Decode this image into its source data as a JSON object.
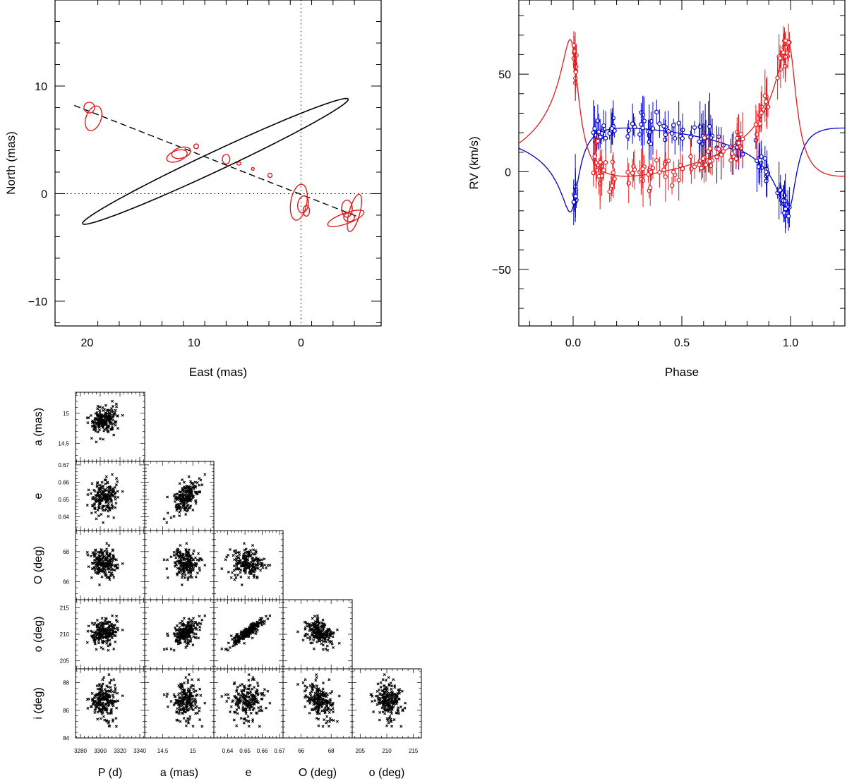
{
  "chart_data": [
    {
      "id": "orbit",
      "type": "scatter",
      "title": "",
      "xlabel": "East (mas)",
      "ylabel": "North (mas)",
      "xlim": [
        23,
        -7.5
      ],
      "ylim": [
        -12.3,
        18
      ],
      "xticks": [
        20,
        10,
        0
      ],
      "yticks": [
        10,
        0,
        -10
      ],
      "orbit_ellipse": {
        "center": [
          8.0,
          3.0
        ],
        "semi_major": 13.7,
        "semi_minor": 0.9,
        "pa_major_deg": 155,
        "color": "#000000"
      },
      "projected_line": {
        "from": [
          21.2,
          8.2
        ],
        "to": [
          -5.2,
          -2.1
        ],
        "style": "dashed",
        "color": "#000000"
      },
      "measurements": [
        {
          "x": 19.8,
          "y": 8.0,
          "rx": 0.5,
          "ry": 0.5,
          "rot": 0
        },
        {
          "x": 19.4,
          "y": 7.0,
          "rx": 0.7,
          "ry": 1.2,
          "rot": 20
        },
        {
          "x": 11.6,
          "y": 3.5,
          "rx": 1.0,
          "ry": 0.5,
          "rot": -20
        },
        {
          "x": 11.2,
          "y": 3.8,
          "rx": 0.9,
          "ry": 0.5,
          "rot": -15
        },
        {
          "x": 9.8,
          "y": 4.4,
          "rx": 0.22,
          "ry": 0.22,
          "rot": 0
        },
        {
          "x": 7.0,
          "y": 3.2,
          "rx": 0.35,
          "ry": 0.45,
          "rot": 0
        },
        {
          "x": 5.8,
          "y": 2.8,
          "rx": 0.2,
          "ry": 0.15,
          "rot": 0
        },
        {
          "x": 4.5,
          "y": 2.3,
          "rx": 0.12,
          "ry": 0.12,
          "rot": 0
        },
        {
          "x": 2.9,
          "y": 1.7,
          "rx": 0.2,
          "ry": 0.2,
          "rot": 0
        },
        {
          "x": 0.2,
          "y": -0.8,
          "rx": 0.75,
          "ry": 1.7,
          "rot": 10
        },
        {
          "x": -0.2,
          "y": -1.0,
          "rx": 0.5,
          "ry": 0.8,
          "rot": 10
        },
        {
          "x": -0.5,
          "y": -1.6,
          "rx": 0.3,
          "ry": 0.5,
          "rot": 0
        },
        {
          "x": -4.3,
          "y": -1.4,
          "rx": 0.5,
          "ry": 0.8,
          "rot": 0
        },
        {
          "x": -4.2,
          "y": -2.3,
          "rx": 1.8,
          "ry": 0.5,
          "rot": -20
        },
        {
          "x": -5.0,
          "y": -1.8,
          "rx": 0.5,
          "ry": 1.8,
          "rot": 15
        },
        {
          "x": -4.5,
          "y": -2.2,
          "rx": 0.5,
          "ry": 0.4,
          "rot": 0
        }
      ],
      "measurement_color": "#e41a1c"
    },
    {
      "id": "rv",
      "type": "line",
      "title": "",
      "xlabel": "Phase",
      "ylabel": "RV (km/s)",
      "xlim": [
        -0.25,
        1.25
      ],
      "ylim": [
        -79,
        88
      ],
      "xticks": [
        0.0,
        0.5,
        1.0
      ],
      "xticklabels": [
        "0.0",
        "0.5",
        "1.0"
      ],
      "yticks": [
        50,
        0,
        -50
      ],
      "orbit": {
        "e": 0.65,
        "omega_deg": 210,
        "gamma": 13,
        "K1": 21.5,
        "K2": 35.0,
        "t_peri_phase": 0.0
      },
      "series": [
        {
          "color": "#0000cc",
          "sign": 1
        },
        {
          "color": "#e41a1c",
          "sign": -1
        }
      ]
    },
    {
      "id": "corner",
      "type": "scatter",
      "title": "",
      "parameters": [
        {
          "label": "P (d)",
          "mean": 3304,
          "sd": 7,
          "ticks": [
            3280,
            3300,
            3320,
            3340
          ],
          "range": [
            3275,
            3345
          ]
        },
        {
          "label": "a (mas)",
          "mean": 14.88,
          "sd": 0.1,
          "ticks": [
            14.5,
            15.0
          ],
          "range": [
            14.2,
            15.35
          ]
        },
        {
          "label": "e",
          "mean": 0.651,
          "sd": 0.005,
          "ticks": [
            0.64,
            0.65,
            0.66,
            0.67
          ],
          "range": [
            0.632,
            0.672
          ]
        },
        {
          "label": "O (deg)",
          "mean": 67.2,
          "sd": 0.5,
          "ticks": [
            66,
            68
          ],
          "range": [
            64.8,
            69.4
          ]
        },
        {
          "label": "o (deg)",
          "mean": 210.3,
          "sd": 1.3,
          "ticks": [
            205,
            210,
            215
          ],
          "range": [
            203.5,
            216.5
          ]
        },
        {
          "label": "i (deg)",
          "mean": 86.7,
          "sd": 0.45,
          "ticks": [
            84,
            86,
            88
          ],
          "range": [
            84.0,
            89.0
          ]
        }
      ],
      "correlations": [
        [
          1,
          0.3,
          0.15,
          0,
          0.1,
          0
        ],
        [
          0.3,
          1,
          0.4,
          0,
          0.3,
          0
        ],
        [
          0.15,
          0.4,
          1,
          0,
          0.9,
          0
        ],
        [
          0,
          0,
          0,
          1,
          -0.3,
          -0.5
        ],
        [
          0.1,
          0.3,
          0.9,
          -0.3,
          1,
          -0.3
        ],
        [
          0,
          0,
          0,
          -0.5,
          -0.3,
          1
        ]
      ],
      "n_samples": 200,
      "marker": "x",
      "marker_color": "#000000"
    }
  ]
}
